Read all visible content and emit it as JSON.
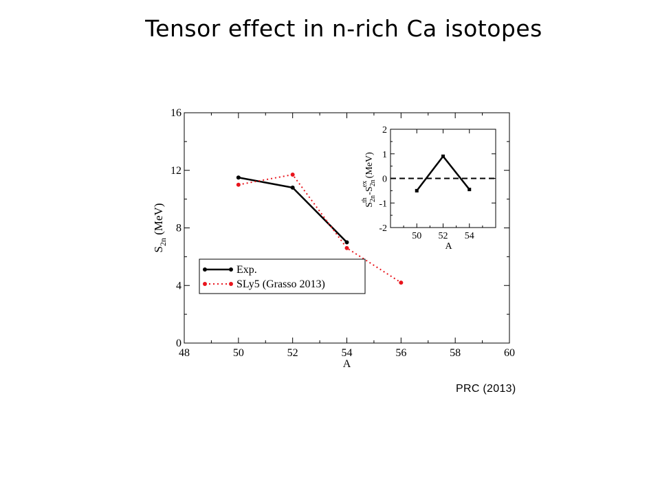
{
  "slide": {
    "title": "Tensor effect in n-rich Ca isotopes",
    "citation": "PRC (2013)"
  },
  "chart_data": [
    {
      "type": "line",
      "xlabel": "A",
      "ylabel": "S2n (MeV)",
      "ylabel_main": "S",
      "ylabel_sub": "2n",
      "ylabel_unit": " (MeV)",
      "xlim": [
        48,
        60
      ],
      "ylim": [
        0,
        16
      ],
      "xticks": [
        48,
        50,
        52,
        54,
        56,
        58,
        60
      ],
      "yticks": [
        0,
        4,
        8,
        12,
        16
      ],
      "grid": false,
      "legend": "bottom-left",
      "series": [
        {
          "name": "Exp.",
          "color": "#000000",
          "style": "solid",
          "x": [
            50,
            52,
            54
          ],
          "y": [
            11.5,
            10.8,
            7.0
          ]
        },
        {
          "name": "SLy5 (Grasso 2013)",
          "color": "#e8141c",
          "style": "dotted",
          "x": [
            50,
            52,
            54,
            56
          ],
          "y": [
            11.0,
            11.7,
            6.6,
            4.2
          ]
        }
      ]
    },
    {
      "type": "line",
      "xlabel": "A",
      "ylabel": "S2n th - S2n ex (MeV)",
      "xlim": [
        48,
        56
      ],
      "ylim": [
        -2,
        2
      ],
      "xticks": [
        50,
        52,
        54
      ],
      "yticks": [
        -2,
        -1,
        0,
        1,
        2
      ],
      "grid": false,
      "reference_line": {
        "y": 0,
        "style": "dashed"
      },
      "series": [
        {
          "color": "#000000",
          "style": "solid",
          "x": [
            50,
            52,
            54
          ],
          "y": [
            -0.5,
            0.9,
            -0.45
          ]
        }
      ]
    }
  ]
}
